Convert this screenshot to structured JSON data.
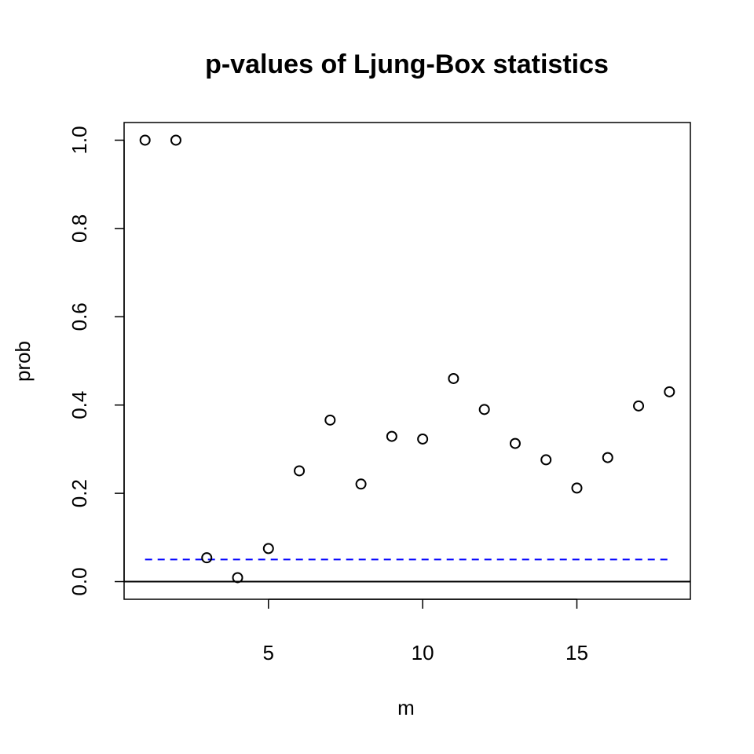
{
  "chart_data": {
    "type": "scatter",
    "title": "p-values of Ljung-Box statistics",
    "xlabel": "m",
    "ylabel": "prob",
    "xlim": [
      0.32,
      18.68
    ],
    "ylim": [
      -0.04,
      1.04
    ],
    "x_ticks": [
      5,
      10,
      15
    ],
    "y_ticks": [
      0.0,
      0.2,
      0.4,
      0.6,
      0.8,
      1.0
    ],
    "y_tick_labels": [
      "0.0",
      "0.2",
      "0.4",
      "0.6",
      "0.8",
      "1.0"
    ],
    "x": [
      1,
      2,
      3,
      4,
      5,
      6,
      7,
      8,
      9,
      10,
      11,
      12,
      13,
      14,
      15,
      16,
      17,
      18
    ],
    "y": [
      1.0,
      1.0,
      0.054,
      0.009,
      0.075,
      0.251,
      0.366,
      0.221,
      0.329,
      0.323,
      0.46,
      0.39,
      0.313,
      0.276,
      0.212,
      0.281,
      0.398,
      0.43
    ],
    "reference_lines": [
      {
        "y": 0.05,
        "x_from": 1,
        "x_to": 18,
        "color": "#0000ff",
        "style": "dashed"
      },
      {
        "y": 0.0,
        "color": "#000000",
        "style": "solid",
        "full_width": true
      }
    ],
    "point_style": "open-circle",
    "grid": false,
    "legend": "none"
  }
}
